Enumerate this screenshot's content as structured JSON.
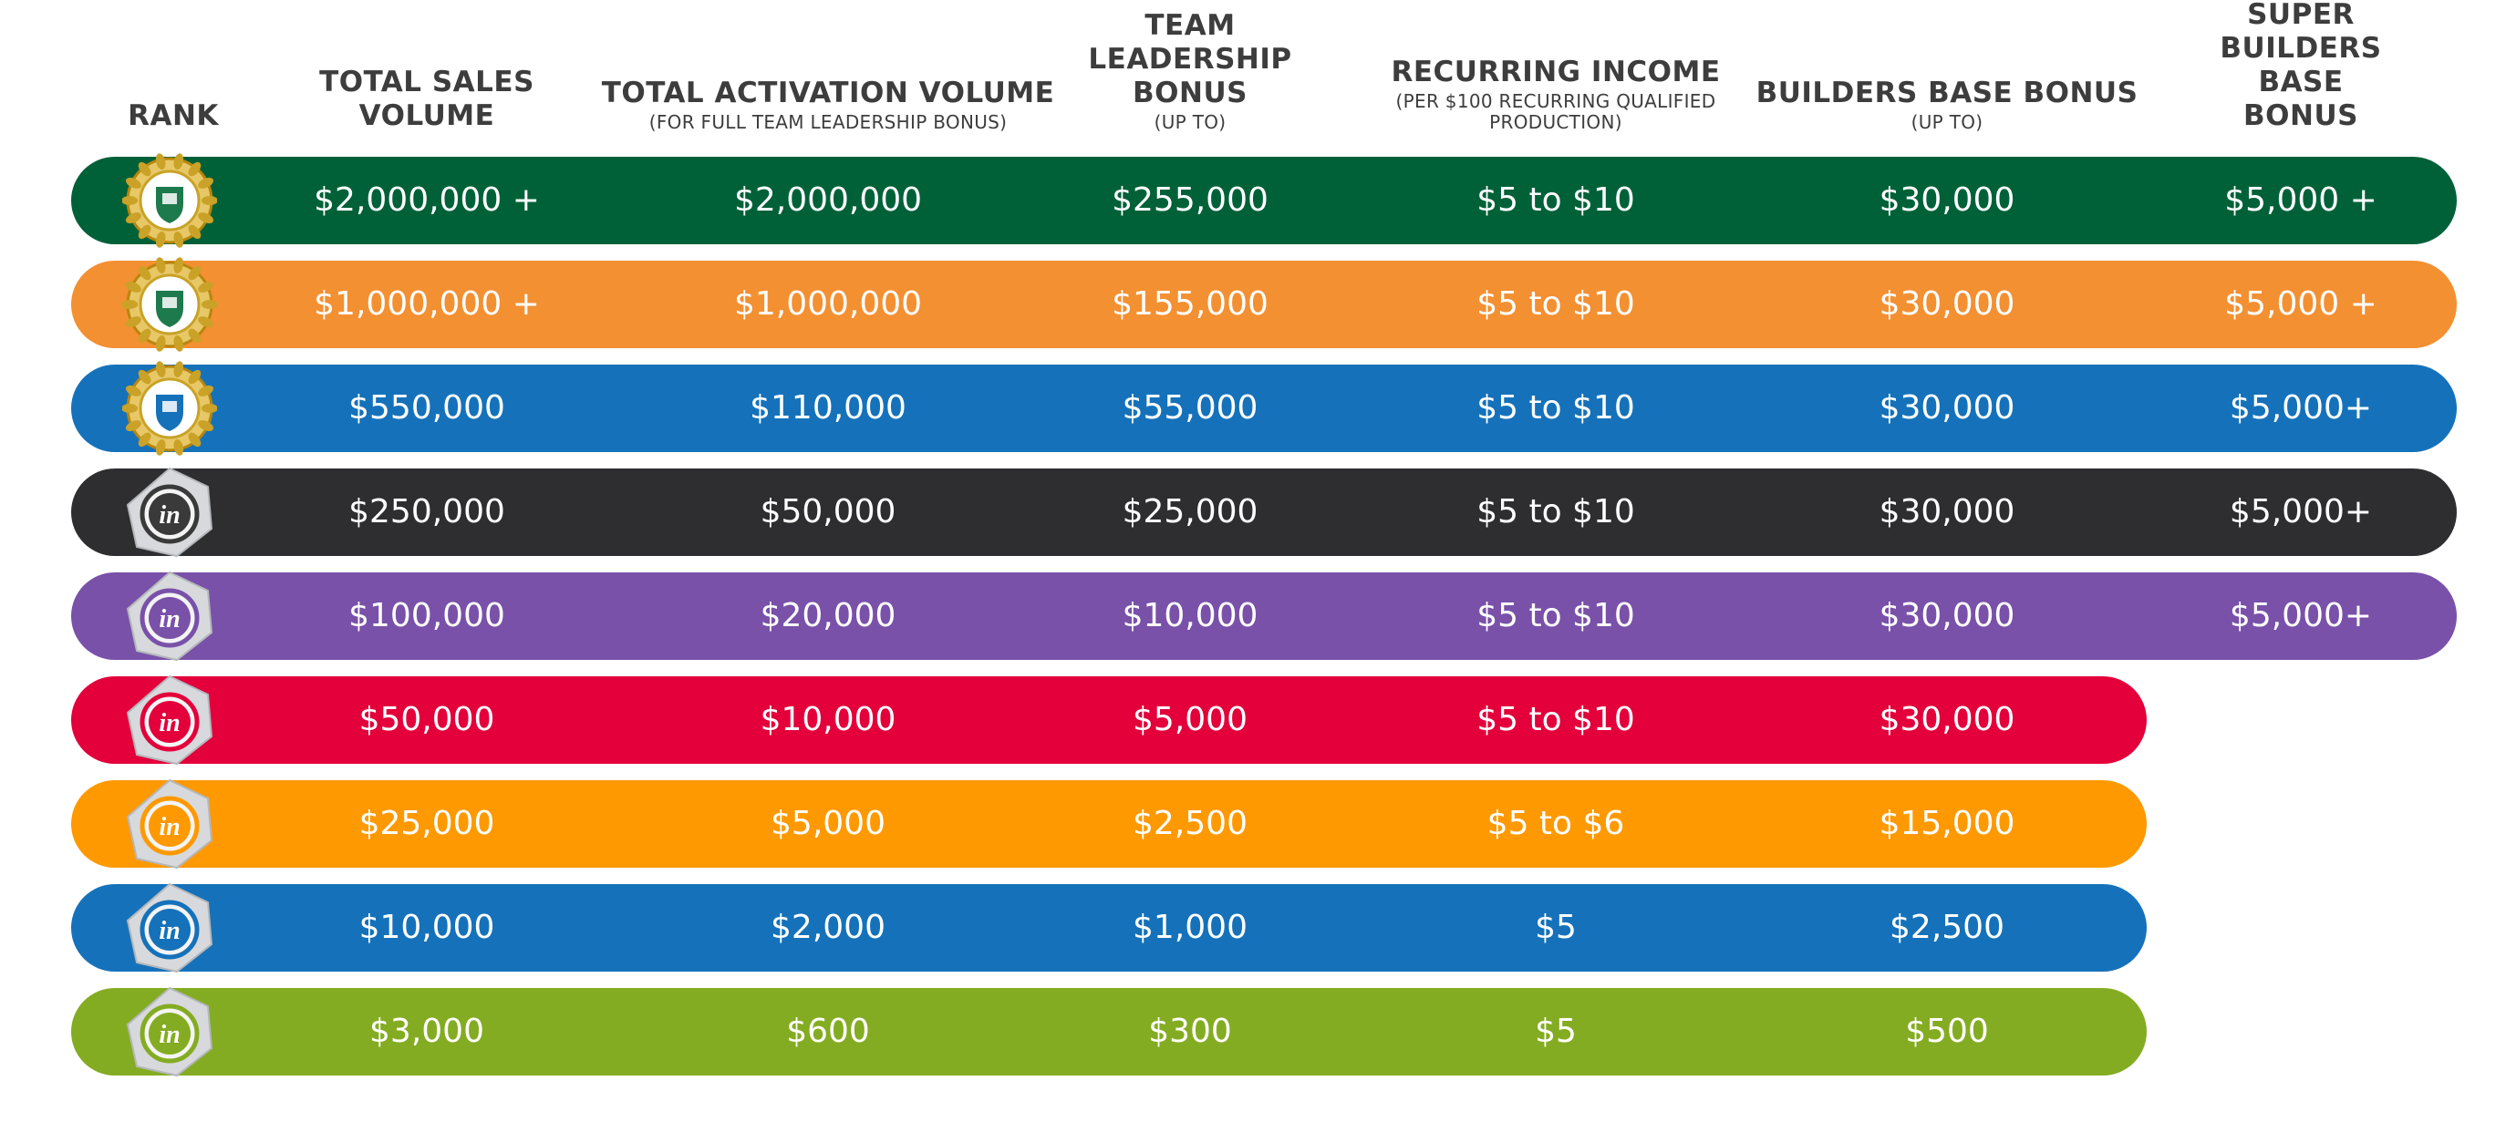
{
  "chart_data": {
    "type": "table",
    "columns": [
      {
        "key": "rank",
        "label": "RANK",
        "sublabel": ""
      },
      {
        "key": "total_sales_volume",
        "label": "TOTAL SALES\nVOLUME",
        "sublabel": ""
      },
      {
        "key": "total_activation_volume",
        "label": "TOTAL ACTIVATION VOLUME",
        "sublabel": "(FOR FULL TEAM LEADERSHIP BONUS)"
      },
      {
        "key": "team_leadership_bonus",
        "label": "TEAM\nLEADERSHIP\nBONUS",
        "sublabel": "(UP TO)"
      },
      {
        "key": "recurring_income",
        "label": "RECURRING INCOME",
        "sublabel": "(PER $100 RECURRING QUALIFIED\nPRODUCTION)"
      },
      {
        "key": "builders_base_bonus",
        "label": "BUILDERS BASE BONUS",
        "sublabel": "(UP TO)"
      },
      {
        "key": "super_builders_base_bonus",
        "label": "SUPER BUILDERS\nBASE BONUS",
        "sublabel": ""
      }
    ],
    "rows": [
      {
        "color": "#006138",
        "badge": "crest-gold-icon",
        "values": [
          "$2,000,000 +",
          "$2,000,000",
          "$255,000",
          "$5 to $10",
          "$30,000",
          "$5,000 +"
        ]
      },
      {
        "color": "#F39032",
        "badge": "crest-gold-icon",
        "values": [
          "$1,000,000 +",
          "$1,000,000",
          "$155,000",
          "$5 to $10",
          "$30,000",
          "$5,000 +"
        ]
      },
      {
        "color": "#1572BA",
        "badge": "crest-blue-icon",
        "values": [
          "$550,000",
          "$110,000",
          "$55,000",
          "$5 to $10",
          "$30,000",
          "$5,000+"
        ]
      },
      {
        "color": "#2E2E30",
        "badge": "hexagon-in-black-icon",
        "values": [
          "$250,000",
          "$50,000",
          "$25,000",
          "$5 to $10",
          "$30,000",
          "$5,000+"
        ]
      },
      {
        "color": "#7951A9",
        "badge": "hexagon-in-purple-icon",
        "values": [
          "$100,000",
          "$20,000",
          "$10,000",
          "$5 to $10",
          "$30,000",
          "$5,000+"
        ]
      },
      {
        "color": "#E3003B",
        "badge": "hexagon-in-red-icon",
        "values": [
          "$50,000",
          "$10,000",
          "$5,000",
          "$5 to $10",
          "$30,000"
        ]
      },
      {
        "color": "#FF9902",
        "badge": "hexagon-in-orange-icon",
        "values": [
          "$25,000",
          "$5,000",
          "$2,500",
          "$5 to $6",
          "$15,000"
        ]
      },
      {
        "color": "#1572BA",
        "badge": "hexagon-in-blue-icon",
        "values": [
          "$10,000",
          "$2,000",
          "$1,000",
          "$5",
          "$2,500"
        ]
      },
      {
        "color": "#84AC22",
        "badge": "hexagon-in-green-icon",
        "values": [
          "$3,000",
          "$600",
          "$300",
          "$5",
          "$500"
        ]
      }
    ]
  }
}
